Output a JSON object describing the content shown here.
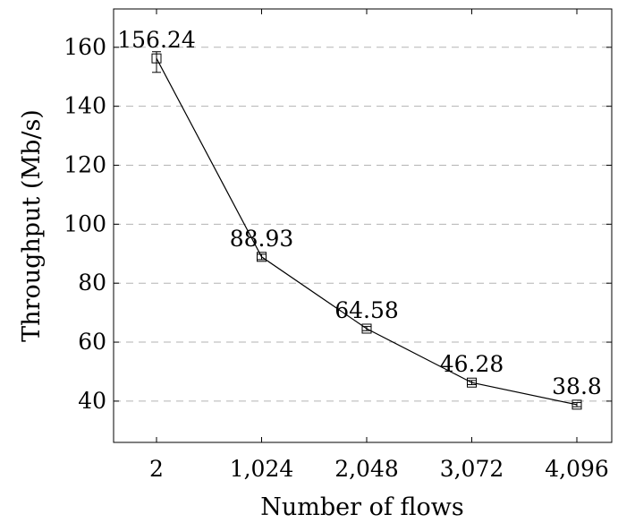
{
  "chart_data": {
    "type": "line",
    "xlabel": "Number of flows",
    "ylabel": "Throughput (Mb/s)",
    "categories": [
      "2",
      "1,024",
      "2,048",
      "3,072",
      "4,096"
    ],
    "x": [
      2,
      1024,
      2048,
      3072,
      4096
    ],
    "series": [
      {
        "values": [
          156.24,
          88.93,
          64.58,
          46.28,
          38.8
        ],
        "error_low": [
          151.5,
          88.0,
          63.9,
          45.6,
          38.1
        ],
        "error_high": [
          158.5,
          89.8,
          65.3,
          47.0,
          39.5
        ],
        "marker": "square",
        "color": "#000000",
        "data_labels": [
          "156.24",
          "88.93",
          "64.58",
          "46.28",
          "38.8"
        ]
      }
    ],
    "ylim": [
      26,
      173
    ],
    "yticks": [
      40,
      60,
      80,
      100,
      120,
      140,
      160
    ],
    "ytick_labels": [
      "40",
      "60",
      "80",
      "100",
      "120",
      "140",
      "160"
    ],
    "grid": "horizontal-dashed",
    "grid_color": "#b3b3b3"
  }
}
